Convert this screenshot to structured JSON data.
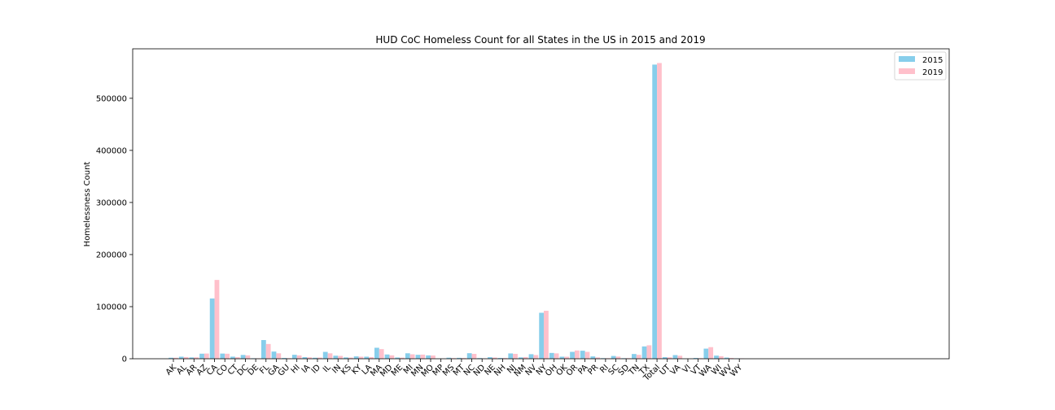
{
  "chart_data": {
    "type": "bar",
    "title": "HUD CoC Homeless Count for all States in the US in 2015 and 2019",
    "xlabel": "",
    "ylabel": "Homelessness Count",
    "ylim": [
      0,
      595000
    ],
    "yticks": [
      0,
      100000,
      200000,
      300000,
      400000,
      500000
    ],
    "grid": false,
    "legend": "top-right",
    "categories": [
      "AK",
      "AL",
      "AR",
      "AZ",
      "CA",
      "CO",
      "CT",
      "DC",
      "DE",
      "FL",
      "GA",
      "GU",
      "HI",
      "IA",
      "ID",
      "IL",
      "IN",
      "KS",
      "KY",
      "LA",
      "MA",
      "MD",
      "ME",
      "MI",
      "MN",
      "MO",
      "MP",
      "MS",
      "MT",
      "NC",
      "ND",
      "NE",
      "NH",
      "NJ",
      "NM",
      "NV",
      "NY",
      "OH",
      "OK",
      "OR",
      "PA",
      "PR",
      "RI",
      "SC",
      "SD",
      "TN",
      "TX",
      "Total",
      "UT",
      "VA",
      "VI",
      "VT",
      "WA",
      "WI",
      "WV",
      "WY"
    ],
    "series": [
      {
        "name": "2015",
        "color": "#87ceeb",
        "values": [
          1956,
          3970,
          2560,
          9707,
          115738,
          9953,
          4047,
          7298,
          953,
          35900,
          13790,
          1500,
          7620,
          3081,
          1966,
          13177,
          5863,
          2588,
          4538,
          3994,
          21135,
          8205,
          2372,
          10516,
          7546,
          6482,
          300,
          2047,
          1745,
          10685,
          1258,
          3026,
          1447,
          10211,
          2629,
          8743,
          88250,
          11182,
          3959,
          13238,
          15421,
          4500,
          1111,
          5354,
          1036,
          9123,
          23678,
          564708,
          3025,
          7020,
          250,
          1523,
          19419,
          6057,
          2240,
          798
        ]
      },
      {
        "name": "2019",
        "color": "#ffc0cb",
        "values": [
          1907,
          3261,
          2717,
          10007,
          151278,
          9619,
          3033,
          6521,
          921,
          28328,
          10443,
          1100,
          6412,
          2749,
          2298,
          10431,
          5471,
          2226,
          3968,
          3059,
          18471,
          6561,
          2106,
          8575,
          7977,
          6179,
          250,
          1184,
          1405,
          9314,
          542,
          2365,
          1396,
          9398,
          3241,
          7169,
          92091,
          10345,
          3871,
          15876,
          13199,
          2535,
          1055,
          4172,
          1159,
          7467,
          25848,
          567715,
          2798,
          5783,
          200,
          1089,
          22304,
          4907,
          1397,
          548
        ]
      }
    ]
  }
}
